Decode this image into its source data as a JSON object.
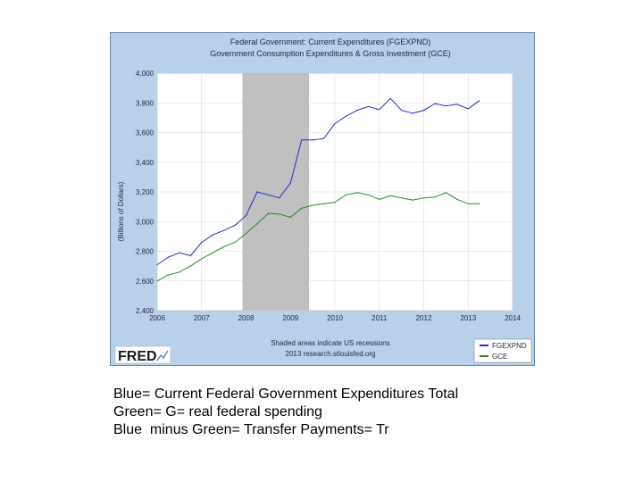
{
  "chart_data": {
    "type": "line",
    "title": "Federal Government: Current Expenditures (FGEXPND)",
    "subtitle": "Government Consumption Expenditures & Gross Investment (GCE)",
    "ylabel": "(Billions of Dollars)",
    "xlabel": "",
    "xlim": [
      2006,
      2014
    ],
    "ylim": [
      2400,
      4000
    ],
    "x_ticks": [
      "2006",
      "2007",
      "2008",
      "2009",
      "2010",
      "2011",
      "2012",
      "2013",
      "2014"
    ],
    "y_ticks": [
      "2,400",
      "2,600",
      "2,800",
      "3,000",
      "3,200",
      "3,400",
      "3,600",
      "3,800",
      "4,000"
    ],
    "grid": true,
    "recession": {
      "start": 2007.917,
      "end": 2009.417,
      "color": "#c0c0c0"
    },
    "series": [
      {
        "name": "FGEXPND",
        "color": "#2030c0",
        "x": [
          2006.0,
          2006.25,
          2006.5,
          2006.75,
          2007.0,
          2007.25,
          2007.5,
          2007.75,
          2008.0,
          2008.25,
          2008.5,
          2008.75,
          2009.0,
          2009.25,
          2009.5,
          2009.75,
          2010.0,
          2010.25,
          2010.5,
          2010.75,
          2011.0,
          2011.25,
          2011.5,
          2011.75,
          2012.0,
          2012.25,
          2012.5,
          2012.75,
          2013.0,
          2013.25
        ],
        "values": [
          2710,
          2760,
          2790,
          2770,
          2860,
          2910,
          2940,
          2975,
          3040,
          3200,
          3180,
          3160,
          3260,
          3550,
          3550,
          3560,
          3660,
          3710,
          3750,
          3775,
          3755,
          3830,
          3750,
          3730,
          3750,
          3795,
          3780,
          3790,
          3760,
          3815
        ]
      },
      {
        "name": "GCE",
        "color": "#2a8a2a",
        "x": [
          2006.0,
          2006.25,
          2006.5,
          2006.75,
          2007.0,
          2007.25,
          2007.5,
          2007.75,
          2008.0,
          2008.25,
          2008.5,
          2008.75,
          2009.0,
          2009.25,
          2009.5,
          2009.75,
          2010.0,
          2010.25,
          2010.5,
          2010.75,
          2011.0,
          2011.25,
          2011.5,
          2011.75,
          2012.0,
          2012.25,
          2012.5,
          2012.75,
          2013.0,
          2013.25
        ],
        "values": [
          2600,
          2640,
          2660,
          2700,
          2750,
          2790,
          2830,
          2860,
          2920,
          2985,
          3055,
          3050,
          3030,
          3090,
          3110,
          3120,
          3130,
          3180,
          3195,
          3180,
          3150,
          3175,
          3160,
          3145,
          3160,
          3165,
          3195,
          3150,
          3120,
          3120
        ]
      }
    ],
    "footnote": [
      "Shaded areas indicate US recessions",
      "2013 research.stlouisfed.org"
    ],
    "legend_position": "bottom-right",
    "source_logo": "FRED"
  },
  "caption": {
    "line1": "Blue= Current Federal Government Expenditures Total",
    "line2": "Green= G= real federal spending",
    "line3": "Blue  minus Green= Transfer Payments= Tr"
  }
}
